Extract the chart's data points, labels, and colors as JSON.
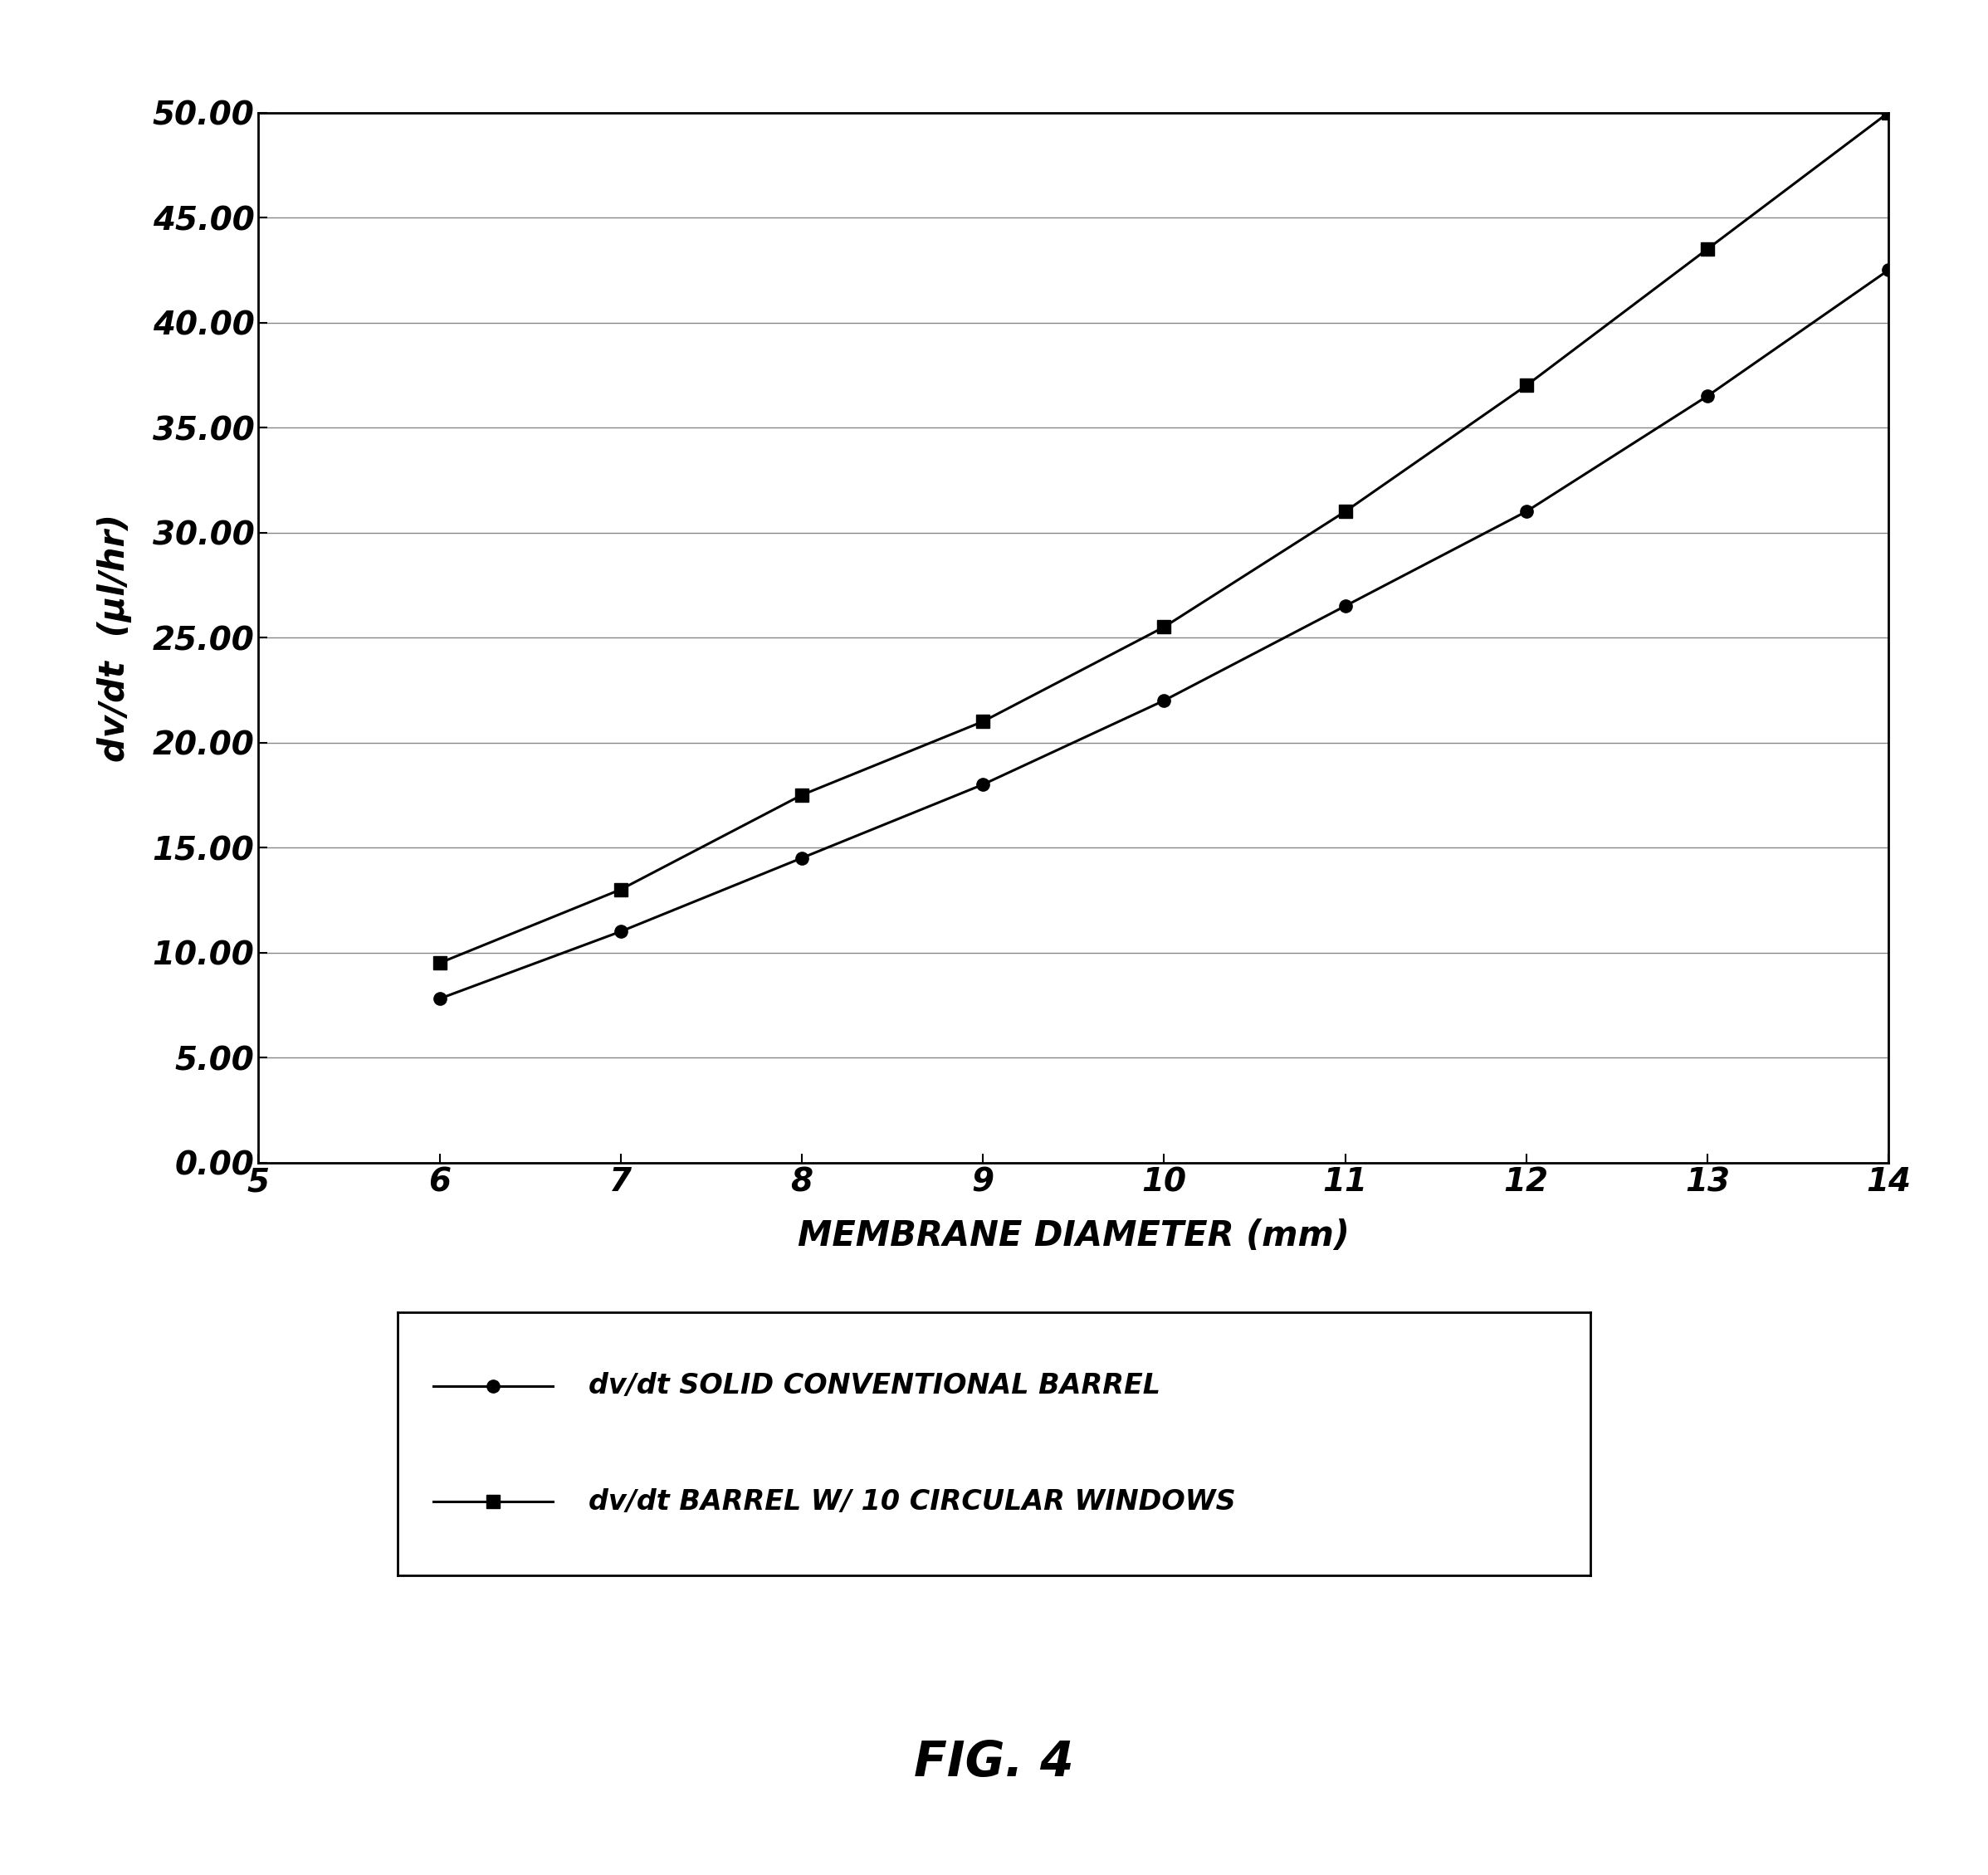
{
  "x": [
    6,
    7,
    8,
    9,
    10,
    11,
    12,
    13,
    14
  ],
  "y_solid": [
    7.8,
    11.0,
    14.5,
    18.0,
    22.0,
    26.5,
    31.0,
    36.5,
    42.5
  ],
  "y_windows": [
    9.5,
    13.0,
    17.5,
    21.0,
    25.5,
    31.0,
    37.0,
    43.5,
    50.0
  ],
  "xlabel": "MEMBRANE DIAMETER (mm)",
  "ylabel": "dv/dt  (μl/hr)",
  "xlim": [
    5,
    14
  ],
  "ylim": [
    0.0,
    50.0
  ],
  "xticks": [
    5,
    6,
    7,
    8,
    9,
    10,
    11,
    12,
    13,
    14
  ],
  "yticks": [
    0.0,
    5.0,
    10.0,
    15.0,
    20.0,
    25.0,
    30.0,
    35.0,
    40.0,
    45.0,
    50.0
  ],
  "legend_label_solid": "dv/dt SOLID CONVENTIONAL BARREL",
  "legend_label_windows": "dv/dt BARREL W/ 10 CIRCULAR WINDOWS",
  "fig_label": "FIG. 4",
  "line_color": "#000000",
  "marker_solid": "o",
  "marker_windows": "s",
  "linewidth": 2.2,
  "markersize": 11,
  "grid_color": "#888888",
  "background_color": "#ffffff",
  "axis_label_fontsize": 30,
  "tick_fontsize": 28,
  "legend_fontsize": 24,
  "fig_label_fontsize": 42
}
